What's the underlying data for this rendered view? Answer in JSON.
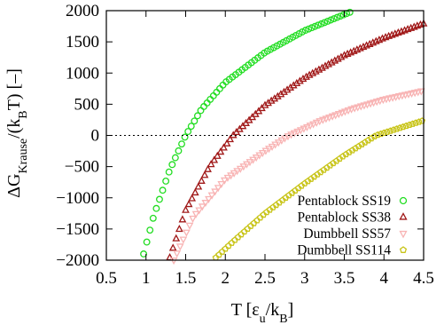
{
  "chart_data": {
    "type": "scatter",
    "xlabel": {
      "base": "T [ε",
      "sub1": "u",
      "mid": "/k",
      "sub2": "B",
      "end": "]"
    },
    "ylabel": {
      "base": "ΔG",
      "sub1": "Krause",
      "mid": "/(k",
      "sub2": "B",
      "end": "T) [–]"
    },
    "xlim": [
      0.5,
      4.5
    ],
    "ylim": [
      -2000,
      2000
    ],
    "x_ticks": [
      "0.5",
      "1",
      "1.5",
      "2",
      "2.5",
      "3",
      "3.5",
      "4",
      "4.5"
    ],
    "y_ticks": [
      "−2000",
      "−1500",
      "−1000",
      "−500",
      "0",
      "500",
      "1000",
      "1500",
      "2000"
    ],
    "reference_line": {
      "y": 0,
      "style": "dotted"
    },
    "legend_position": "bottom-right",
    "series": [
      {
        "name": "Pentablock SS19",
        "marker": "circle",
        "color": "#22dd22",
        "x_range": [
          0.97,
          3.6
        ],
        "x_step": 0.04,
        "curve": [
          [
            0.97,
            -1900
          ],
          [
            1.1,
            -1280
          ],
          [
            1.3,
            -550
          ],
          [
            1.5,
            0
          ],
          [
            1.7,
            420
          ],
          [
            2.0,
            850
          ],
          [
            2.5,
            1330
          ],
          [
            3.0,
            1680
          ],
          [
            3.6,
            1990
          ]
        ]
      },
      {
        "name": "Pentablock SS38",
        "marker": "triangle-up",
        "color": "#a01818",
        "x_range": [
          1.3,
          4.5
        ],
        "x_step": 0.04,
        "curve": [
          [
            1.3,
            -1960
          ],
          [
            1.5,
            -1200
          ],
          [
            1.8,
            -500
          ],
          [
            2.1,
            0
          ],
          [
            2.5,
            480
          ],
          [
            3.0,
            920
          ],
          [
            3.5,
            1280
          ],
          [
            4.0,
            1560
          ],
          [
            4.5,
            1790
          ]
        ]
      },
      {
        "name": "Dumbbell SS57",
        "marker": "triangle-down",
        "color": "#f8b4b4",
        "x_range": [
          1.35,
          4.5
        ],
        "x_step": 0.04,
        "curve": [
          [
            1.35,
            -2000
          ],
          [
            1.6,
            -1300
          ],
          [
            2.0,
            -700
          ],
          [
            2.5,
            -250
          ],
          [
            2.8,
            0
          ],
          [
            3.2,
            240
          ],
          [
            3.6,
            430
          ],
          [
            4.0,
            580
          ],
          [
            4.5,
            720
          ]
        ]
      },
      {
        "name": "Dumbbell SS114",
        "marker": "pentagon",
        "color": "#c8c418",
        "x_range": [
          1.88,
          4.5
        ],
        "x_step": 0.04,
        "curve": [
          [
            1.88,
            -1960
          ],
          [
            2.1,
            -1700
          ],
          [
            2.5,
            -1250
          ],
          [
            3.0,
            -770
          ],
          [
            3.5,
            -320
          ],
          [
            3.9,
            0
          ],
          [
            4.2,
            120
          ],
          [
            4.5,
            240
          ]
        ]
      }
    ]
  }
}
